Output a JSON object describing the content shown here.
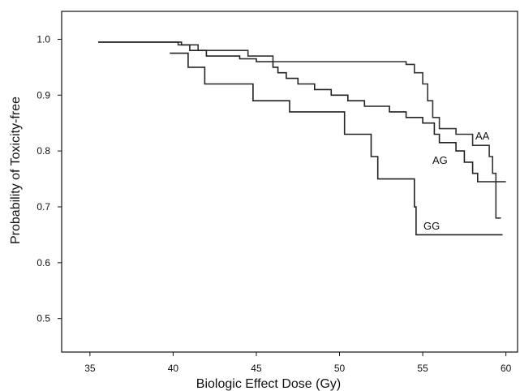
{
  "chart_data": {
    "type": "line",
    "title": "",
    "xlabel": "Biologic Effect Dose (Gy)",
    "ylabel": "Probability of Toxicity-free",
    "xlim": [
      33.3,
      60.7
    ],
    "ylim": [
      0.44,
      1.05
    ],
    "xticks": [
      35,
      40,
      45,
      50,
      55,
      60
    ],
    "yticks": [
      0.5,
      0.6,
      0.7,
      0.8,
      0.9,
      1.0
    ],
    "xtick_labels": [
      "35",
      "40",
      "45",
      "50",
      "55",
      "60"
    ],
    "ytick_labels": [
      "0.5",
      "0.6",
      "0.7",
      "0.8",
      "0.9",
      "1.0"
    ],
    "grid": false,
    "legend": "none",
    "series": [
      {
        "name": "AA",
        "color": "#333333",
        "step": true,
        "points": [
          [
            35.5,
            0.995
          ],
          [
            39.0,
            0.995
          ],
          [
            40.3,
            0.99
          ],
          [
            41.5,
            0.98
          ],
          [
            44.5,
            0.97
          ],
          [
            46.0,
            0.96
          ],
          [
            54.0,
            0.955
          ],
          [
            54.5,
            0.94
          ],
          [
            55.0,
            0.92
          ],
          [
            55.3,
            0.89
          ],
          [
            55.6,
            0.86
          ],
          [
            56.0,
            0.84
          ],
          [
            57.0,
            0.83
          ],
          [
            58.0,
            0.81
          ],
          [
            59.0,
            0.79
          ],
          [
            59.2,
            0.76
          ],
          [
            59.4,
            0.68
          ],
          [
            59.7,
            0.68
          ]
        ]
      },
      {
        "name": "AG",
        "color": "#222222",
        "step": true,
        "points": [
          [
            35.5,
            0.995
          ],
          [
            39.0,
            0.995
          ],
          [
            40.5,
            0.99
          ],
          [
            41.0,
            0.98
          ],
          [
            42.0,
            0.97
          ],
          [
            44.0,
            0.965
          ],
          [
            45.0,
            0.96
          ],
          [
            46.0,
            0.95
          ],
          [
            46.3,
            0.94
          ],
          [
            46.8,
            0.93
          ],
          [
            47.5,
            0.92
          ],
          [
            48.5,
            0.91
          ],
          [
            49.5,
            0.9
          ],
          [
            50.5,
            0.89
          ],
          [
            51.5,
            0.88
          ],
          [
            53.0,
            0.87
          ],
          [
            54.0,
            0.86
          ],
          [
            55.0,
            0.85
          ],
          [
            55.7,
            0.83
          ],
          [
            56.0,
            0.815
          ],
          [
            57.0,
            0.8
          ],
          [
            57.5,
            0.78
          ],
          [
            58.0,
            0.76
          ],
          [
            58.3,
            0.745
          ],
          [
            60.0,
            0.745
          ]
        ]
      },
      {
        "name": "GG",
        "color": "#222222",
        "step": true,
        "points": [
          [
            39.8,
            0.975
          ],
          [
            40.8,
            0.975
          ],
          [
            40.9,
            0.95
          ],
          [
            41.8,
            0.95
          ],
          [
            41.9,
            0.92
          ],
          [
            44.7,
            0.92
          ],
          [
            44.8,
            0.89
          ],
          [
            46.9,
            0.89
          ],
          [
            47.0,
            0.87
          ],
          [
            50.2,
            0.87
          ],
          [
            50.3,
            0.83
          ],
          [
            51.8,
            0.83
          ],
          [
            51.9,
            0.79
          ],
          [
            52.2,
            0.79
          ],
          [
            52.3,
            0.75
          ],
          [
            54.4,
            0.75
          ],
          [
            54.5,
            0.7
          ],
          [
            54.6,
            0.65
          ],
          [
            59.8,
            0.65
          ]
        ]
      }
    ]
  }
}
